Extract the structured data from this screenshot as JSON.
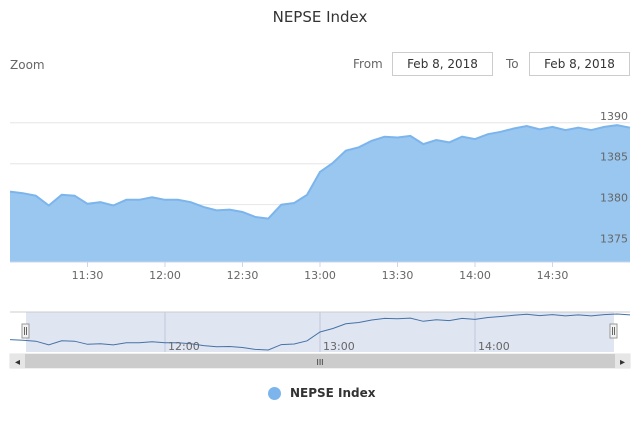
{
  "title": "NEPSE Index",
  "range_selector": {
    "zoom_label": "Zoom",
    "from_label": "From",
    "from_value": "Feb 8, 2018",
    "to_label": "To",
    "to_value": "Feb 8, 2018"
  },
  "navigator": {
    "tick_labels": [
      "12:00",
      "13:00",
      "14:00"
    ],
    "scrollbar_grip": "III",
    "left_arrow": "◂",
    "right_arrow": "▸"
  },
  "legend": {
    "label": "NEPSE Index"
  },
  "colors": {
    "series": "#7cb5ec",
    "area": "#99c7f0",
    "grid": "#e6e6e6",
    "navigator_mask": "#d6dcee"
  },
  "chart_data": {
    "type": "area",
    "title": "NEPSE Index",
    "series": [
      {
        "name": "NEPSE Index",
        "x": [
          "11:00",
          "11:05",
          "11:10",
          "11:15",
          "11:20",
          "11:25",
          "11:30",
          "11:35",
          "11:40",
          "11:45",
          "11:50",
          "11:55",
          "12:00",
          "12:05",
          "12:10",
          "12:15",
          "12:20",
          "12:25",
          "12:30",
          "12:35",
          "12:40",
          "12:45",
          "12:50",
          "12:55",
          "13:00",
          "13:05",
          "13:10",
          "13:15",
          "13:20",
          "13:25",
          "13:30",
          "13:35",
          "13:40",
          "13:45",
          "13:50",
          "13:55",
          "14:00",
          "14:05",
          "14:10",
          "14:15",
          "14:20",
          "14:25",
          "14:30",
          "14:35",
          "14:40",
          "14:45",
          "14:50",
          "14:55",
          "15:00"
        ],
        "y": [
          1381.6,
          1381.4,
          1381.1,
          1379.9,
          1381.2,
          1381.1,
          1380.1,
          1380.3,
          1379.9,
          1380.6,
          1380.6,
          1380.9,
          1380.6,
          1380.6,
          1380.3,
          1379.7,
          1379.3,
          1379.4,
          1379.1,
          1378.5,
          1378.3,
          1380.0,
          1380.2,
          1381.2,
          1384.0,
          1385.1,
          1386.6,
          1387.0,
          1387.8,
          1388.3,
          1388.2,
          1388.4,
          1387.4,
          1387.9,
          1387.6,
          1388.3,
          1388.0,
          1388.6,
          1388.9,
          1389.3,
          1389.6,
          1389.2,
          1389.5,
          1389.1,
          1389.4,
          1389.1,
          1389.5,
          1389.7,
          1389.4
        ]
      }
    ],
    "x_ticks": [
      "11:30",
      "12:00",
      "12:30",
      "13:00",
      "13:30",
      "14:00",
      "14:30"
    ],
    "y_ticks": [
      1375,
      1380,
      1385,
      1390
    ],
    "ylim": [
      1373,
      1394
    ],
    "grid": true,
    "legend_position": "bottom-center"
  }
}
